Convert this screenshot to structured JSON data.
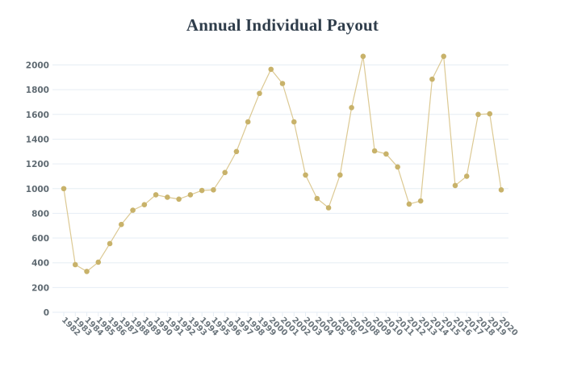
{
  "chart_data": {
    "type": "line",
    "title": "Annual Individual Payout",
    "xlabel": "",
    "ylabel": "",
    "ylim": [
      0,
      2000
    ],
    "yticks": [
      0,
      200,
      400,
      600,
      800,
      1000,
      1200,
      1400,
      1600,
      1800,
      2000
    ],
    "grid": true,
    "legend": null,
    "categories": [
      "1982",
      "1983",
      "1984",
      "1985",
      "1986",
      "1987",
      "1988",
      "1989",
      "1990",
      "1991",
      "1992",
      "1993",
      "1994",
      "1995",
      "1996",
      "1997",
      "1998",
      "1999",
      "2000",
      "2001",
      "2002",
      "2003",
      "2004",
      "2005",
      "2006",
      "2007",
      "2008",
      "2009",
      "2010",
      "2011",
      "2012",
      "2013",
      "2014",
      "2015",
      "2016",
      "2017",
      "2018",
      "2019",
      "2020"
    ],
    "series": [
      {
        "name": "Annual Individual Payout",
        "color": "#c8b26a",
        "values": [
          1000,
          385,
          330,
          405,
          555,
          710,
          825,
          870,
          950,
          930,
          915,
          950,
          985,
          990,
          1130,
          1300,
          1540,
          1770,
          1965,
          1850,
          1540,
          1110,
          920,
          845,
          1110,
          1655,
          2070,
          1305,
          1280,
          1175,
          875,
          900,
          1885,
          2070,
          1025,
          1100,
          1600,
          1605,
          990
        ]
      }
    ]
  },
  "colors": {
    "title": "#2f3d4b",
    "line": "#dcc993",
    "marker": "#c8b26a",
    "grid": "#e6edf4",
    "axis_label": "#6b757c"
  }
}
